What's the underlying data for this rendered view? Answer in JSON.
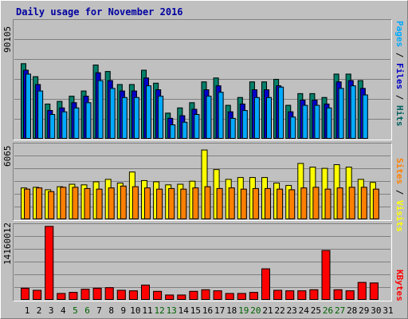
{
  "chart_data": {
    "title": "Daily usage for November 2016",
    "x_categories": [
      "1",
      "2",
      "3",
      "4",
      "5",
      "6",
      "7",
      "8",
      "9",
      "10",
      "11",
      "12",
      "13",
      "14",
      "15",
      "16",
      "17",
      "18",
      "19",
      "20",
      "21",
      "22",
      "23",
      "24",
      "25",
      "26",
      "27",
      "28",
      "29",
      "30",
      "31"
    ],
    "weekend_days": [
      "5",
      "6",
      "12",
      "13",
      "19",
      "20",
      "26",
      "27"
    ],
    "x_weekday_color": "#000000",
    "x_weekend_color": "#006000",
    "panels": [
      {
        "type": "bar",
        "max_label": "90105",
        "ylim": [
          0,
          90105
        ],
        "right_label": [
          {
            "text": "Pages",
            "color": "#00aaff"
          },
          {
            "text": " / ",
            "color": "#000000"
          },
          {
            "text": "Files",
            "color": "#0000c8"
          },
          {
            "text": " / ",
            "color": "#000000"
          },
          {
            "text": "Hits",
            "color": "#006060"
          }
        ],
        "series": [
          {
            "name": "Hits",
            "color": "#00806a",
            "values": [
              58000,
              48000,
              27000,
              29000,
              33000,
              37000,
              57000,
              52000,
              42000,
              42000,
              53000,
              43000,
              20000,
              24000,
              28000,
              44000,
              47000,
              26000,
              32000,
              44000,
              44000,
              46000,
              26000,
              35000,
              35000,
              32000,
              50000,
              50000,
              45000,
              0,
              0
            ]
          },
          {
            "name": "Files",
            "color": "#0000c8",
            "values": [
              53000,
              42000,
              22000,
              24000,
              28000,
              33000,
              51000,
              45000,
              37000,
              37000,
              47000,
              38000,
              16000,
              18000,
              23000,
              38000,
              41000,
              21000,
              27000,
              38000,
              38000,
              41000,
              21000,
              30000,
              30000,
              27000,
              44000,
              45000,
              39000,
              0,
              0
            ]
          },
          {
            "name": "Pages",
            "color": "#00aaff",
            "values": [
              50000,
              37000,
              19000,
              21000,
              24000,
              28000,
              45000,
              39000,
              32000,
              32000,
              41000,
              33000,
              11000,
              13000,
              19000,
              33000,
              36000,
              16000,
              22000,
              32000,
              32000,
              40000,
              17000,
              26000,
              26000,
              24000,
              39000,
              41000,
              34000,
              0,
              0
            ]
          }
        ]
      },
      {
        "type": "bar",
        "max_label": "6065",
        "ylim": [
          0,
          6065
        ],
        "right_label": [
          {
            "text": "Sites",
            "color": "#ff8000"
          },
          {
            "text": " / ",
            "color": "#000000"
          },
          {
            "text": "Visits",
            "color": "#ffff00"
          }
        ],
        "series": [
          {
            "name": "Visits",
            "color": "#ffff00",
            "values": [
              2600,
              2650,
              2450,
              2700,
              2900,
              2850,
              3100,
              3300,
              3000,
              3900,
              3200,
              3100,
              2850,
              2900,
              3150,
              5700,
              4100,
              3300,
              3450,
              3450,
              3450,
              3000,
              2800,
              4600,
              4300,
              4200,
              4500,
              4300,
              3300,
              3050,
              0
            ]
          },
          {
            "name": "Sites",
            "color": "#ff8000",
            "values": [
              2500,
              2600,
              2300,
              2650,
              2650,
              2550,
              2500,
              2600,
              2750,
              2700,
              2600,
              2500,
              2550,
              2500,
              2600,
              2700,
              2550,
              2600,
              2500,
              2550,
              2550,
              2500,
              2450,
              2600,
              2650,
              2500,
              2600,
              2650,
              2650,
              2500,
              0
            ]
          }
        ]
      },
      {
        "type": "bar",
        "max_label": "14160012",
        "ylim": [
          0,
          14160012
        ],
        "right_label": [
          {
            "text": "KBytes",
            "color": "#ff0000"
          }
        ],
        "series": [
          {
            "name": "KBytes",
            "color": "#ff0000",
            "values": [
              2300000,
              1900000,
              14100000,
              1300000,
              1500000,
              2100000,
              2300000,
              2400000,
              1900000,
              1800000,
              2900000,
              1700000,
              1000000,
              1000000,
              1700000,
              2000000,
              1800000,
              1300000,
              1300000,
              1500000,
              6000000,
              1900000,
              1800000,
              1800000,
              2000000,
              9500000,
              2000000,
              1800000,
              3400000,
              3300000,
              0
            ]
          }
        ]
      }
    ]
  }
}
